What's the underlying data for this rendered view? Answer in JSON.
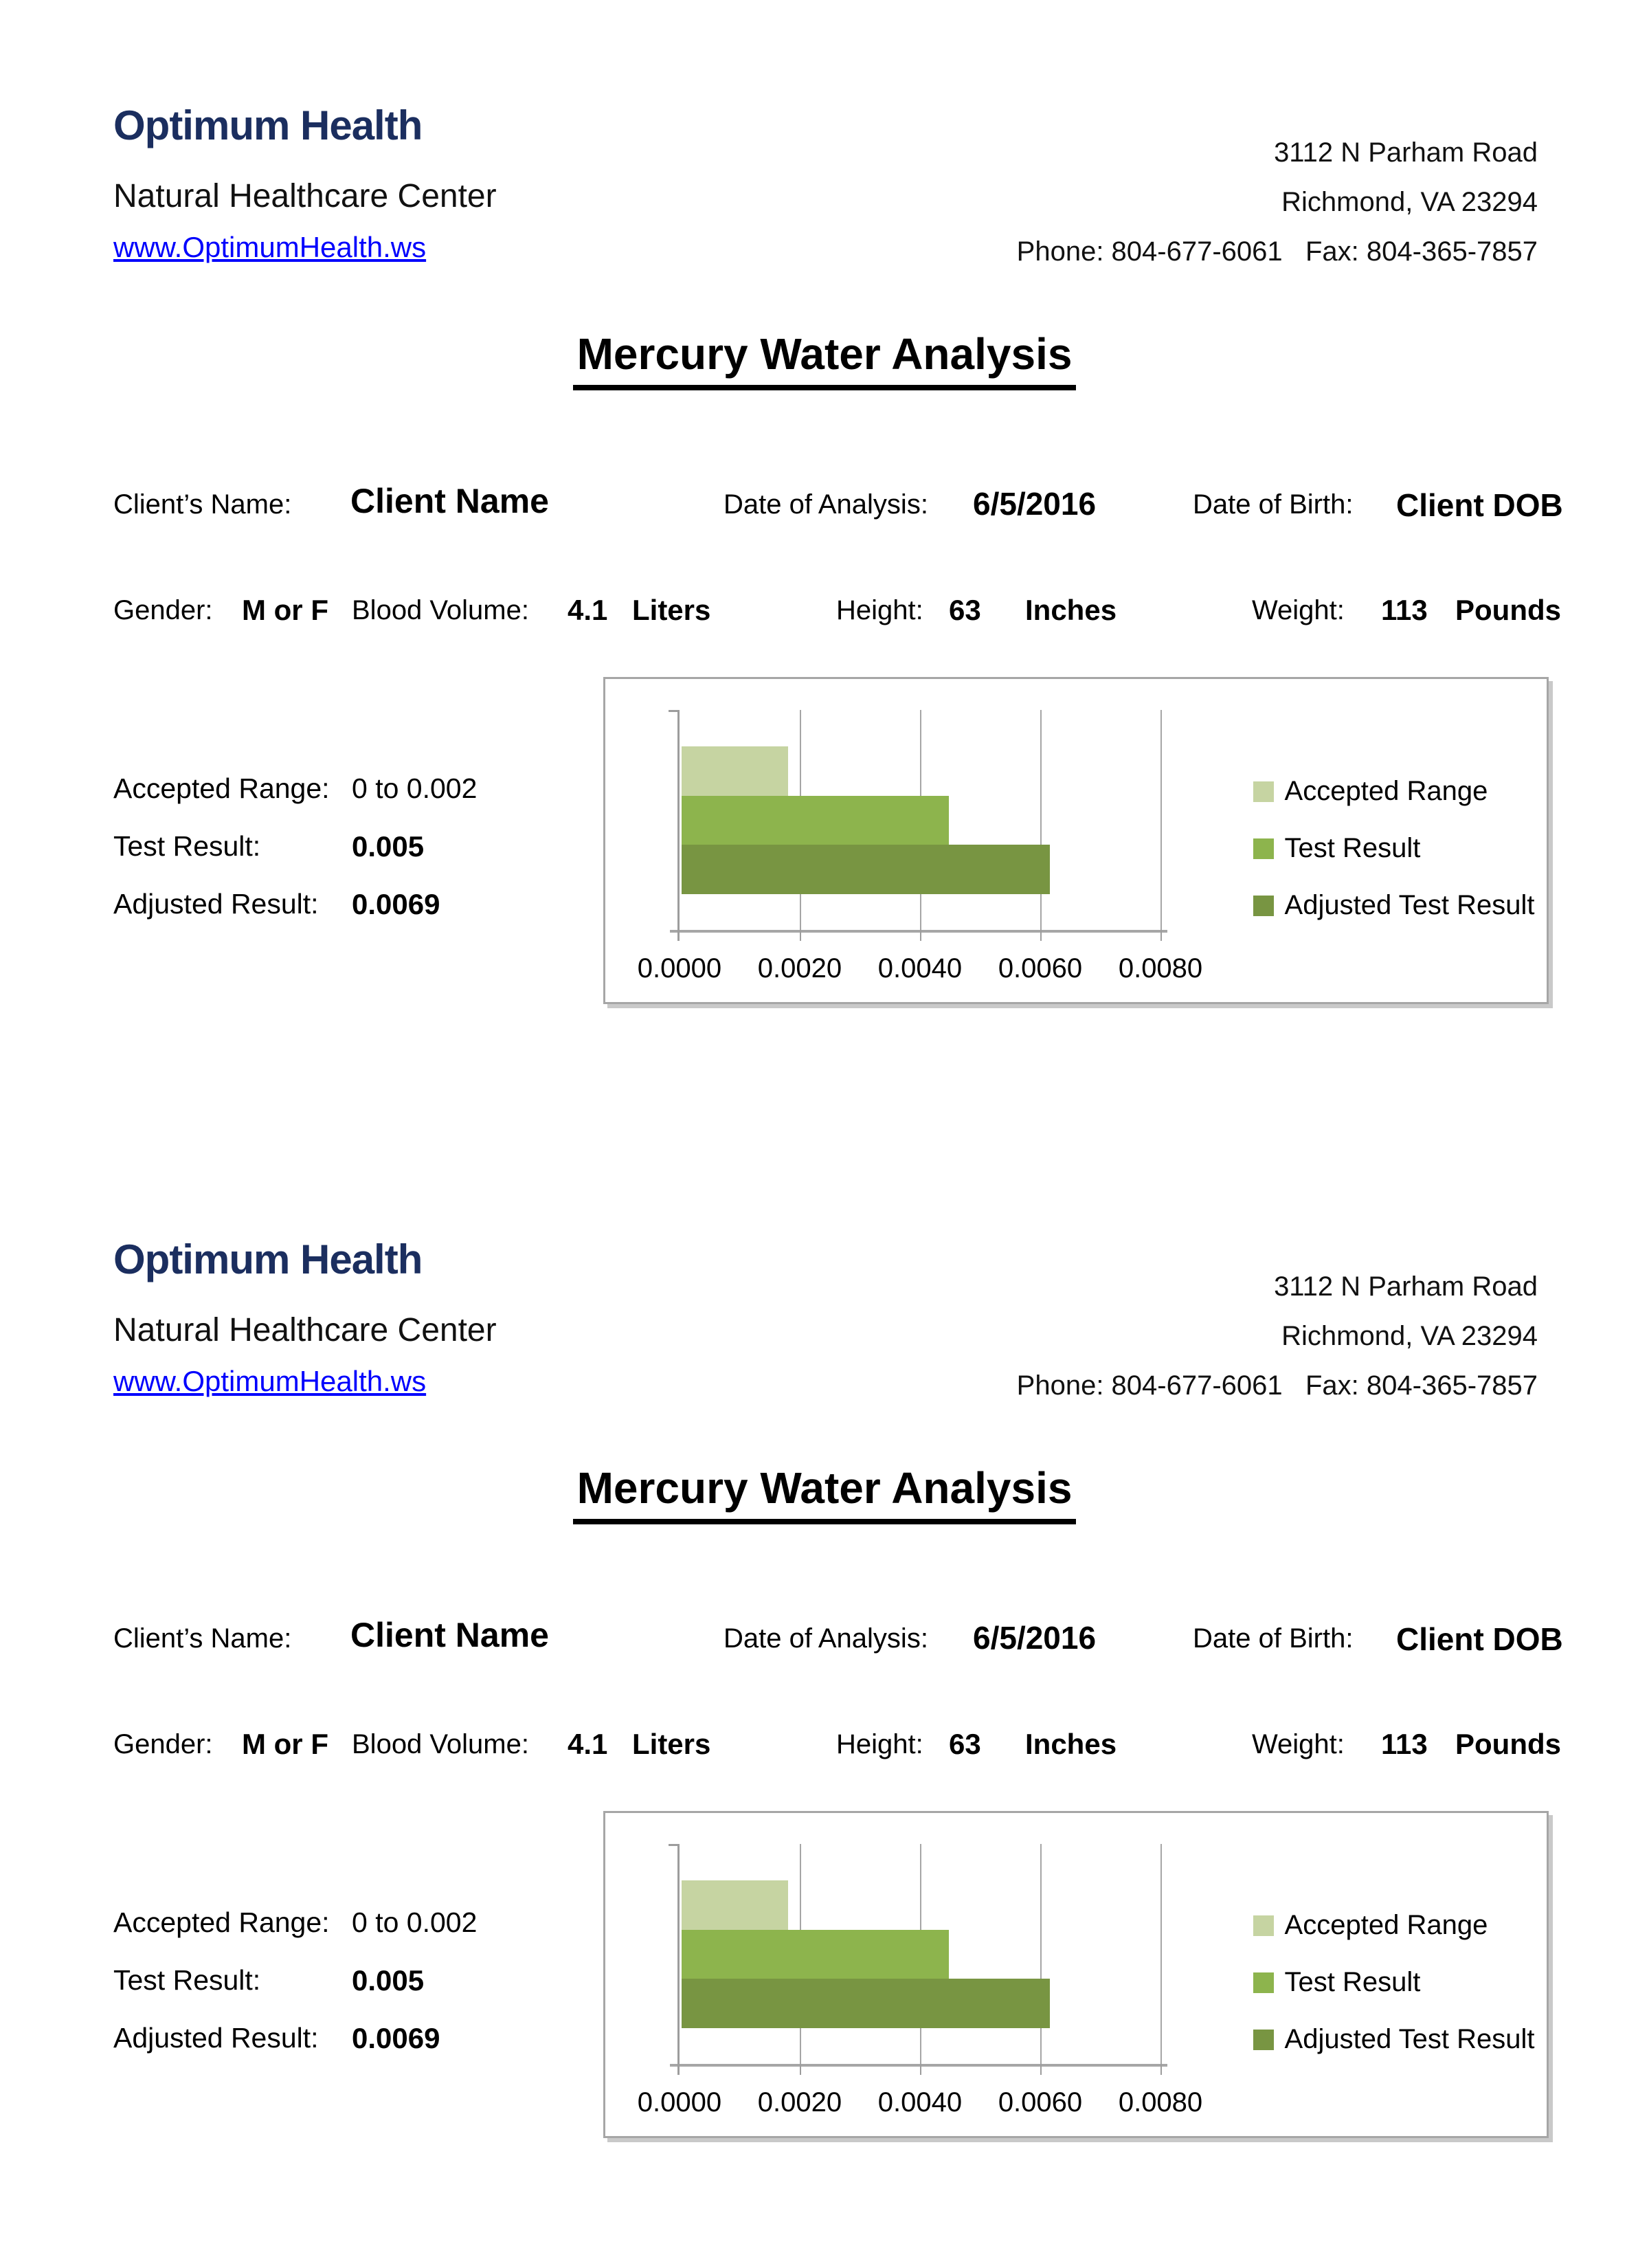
{
  "header": {
    "org_name": "Optimum Health",
    "org_subtitle": "Natural Healthcare Center",
    "org_link": "www.OptimumHealth.ws",
    "address_line1": "3112 N Parham Road",
    "address_line2": "Richmond, VA 23294",
    "address_line3": "Phone: 804-677-6061   Fax: 804-365-7857"
  },
  "title": "Mercury Water Analysis",
  "client": {
    "name_label": "Client’s Name:",
    "name_value": "Client Name",
    "analysis_label": "Date of Analysis:",
    "analysis_value": "6/5/2016",
    "dob_label": "Date of Birth:",
    "dob_value": "Client DOB"
  },
  "vitals": {
    "gender_label": "Gender:",
    "gender_value": "M or F",
    "blood_label": "Blood Volume:",
    "blood_value": "4.1",
    "blood_unit": "Liters",
    "height_label": "Height:",
    "height_value": "63",
    "height_unit": "Inches",
    "weight_label": "Weight:",
    "weight_value": "113",
    "weight_unit": "Pounds"
  },
  "results": {
    "accepted_label": "Accepted Range:",
    "accepted_value": "0 to 0.002",
    "test_label": "Test Result:",
    "test_value": "0.005",
    "adjusted_label": "Adjusted Result:",
    "adjusted_value": "0.0069"
  },
  "chart_data": {
    "type": "bar",
    "orientation": "horizontal",
    "title": "",
    "xlabel": "",
    "ylabel": "",
    "xlim": [
      0,
      0.008
    ],
    "xticks": [
      "0.0000",
      "0.0020",
      "0.0040",
      "0.0060",
      "0.0080"
    ],
    "grid": true,
    "legend_position": "right",
    "series": [
      {
        "name": "Accepted Range",
        "value": 0.002,
        "color": "#c6d4a2"
      },
      {
        "name": "Test Result",
        "value": 0.005,
        "color": "#8db44d"
      },
      {
        "name": "Adjusted Test Result",
        "value": 0.0069,
        "color": "#789542"
      }
    ],
    "colors": {
      "chart_border": "#a6a6a6",
      "gridline": "#a6a6a6",
      "axis": "#9d9d9d",
      "brand_navy": "#1b2e5f",
      "link_blue": "#0101fd"
    }
  }
}
